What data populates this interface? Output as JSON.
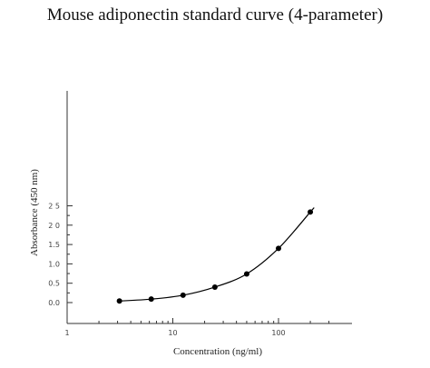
{
  "chart_data": {
    "type": "scatter",
    "title": "Mouse adiponectin standard curve (4-parameter)",
    "xlabel": "Concentration (ng/ml)",
    "ylabel": "Absorbance (450 nm)",
    "x_scale": "log",
    "xlim": [
      1,
      300
    ],
    "ylim": [
      -0.15,
      2.7
    ],
    "x_ticks": [
      1,
      10,
      100
    ],
    "x_tick_labels": [
      "1",
      "10",
      "100"
    ],
    "y_ticks": [
      0.0,
      0.5,
      1.0,
      1.5,
      2.0,
      2.5
    ],
    "y_tick_labels": [
      "0.0",
      "0.5",
      "1.0",
      "1.5",
      "2 0",
      "2 5"
    ],
    "grid": false,
    "series": [
      {
        "x": [
          3.125,
          6.25,
          12.5,
          25,
          50,
          100,
          200
        ],
        "y": [
          0.04,
          0.09,
          0.19,
          0.4,
          0.74,
          1.4,
          2.34
        ],
        "marker": "circle",
        "fit": "4-parameter logistic curve"
      }
    ],
    "colors": {
      "points": "#000000",
      "curve": "#000000",
      "axis": "#333333"
    }
  }
}
